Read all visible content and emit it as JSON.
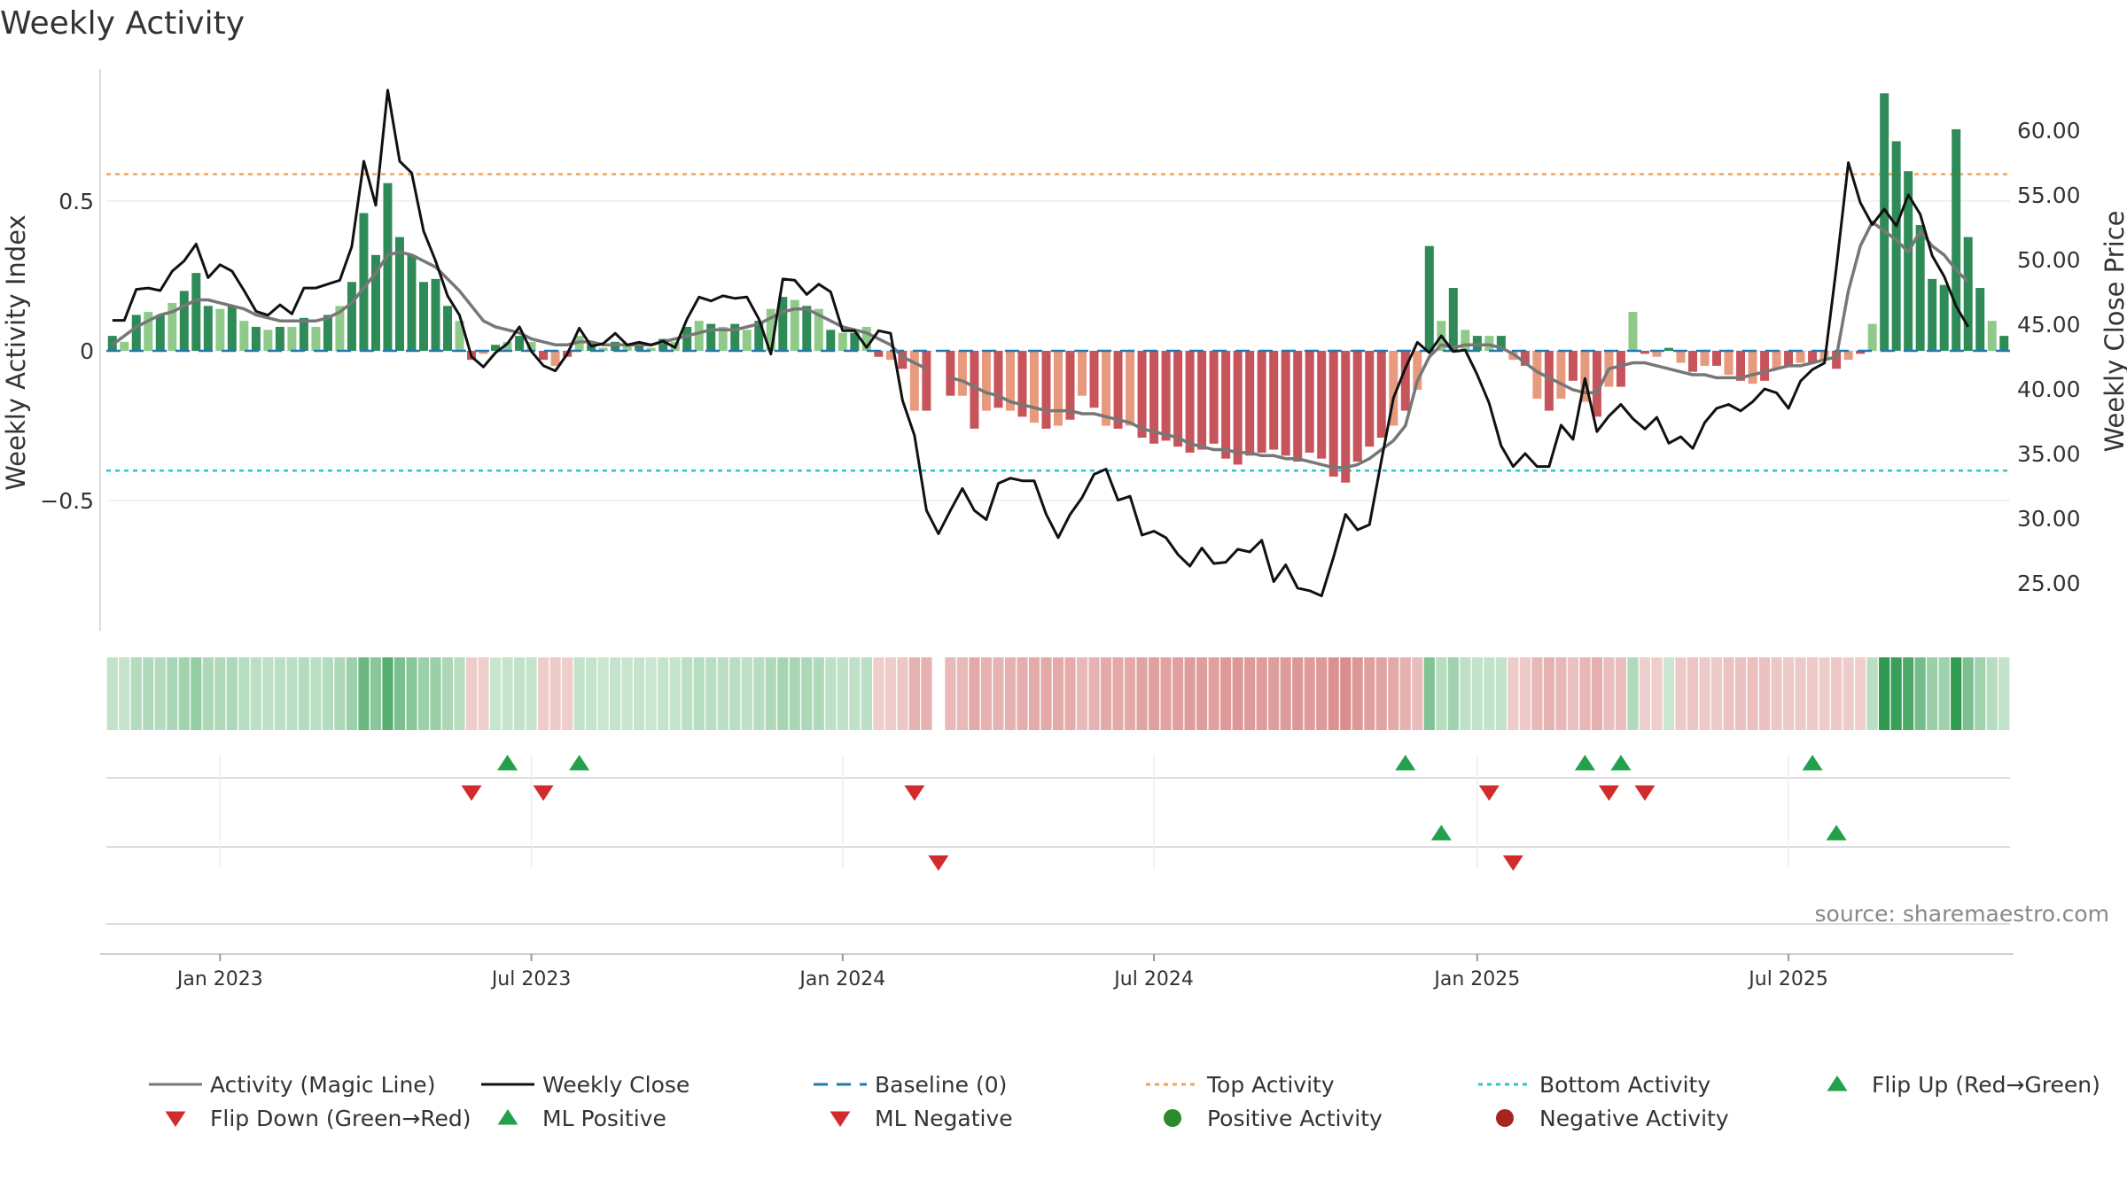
{
  "title": "Weekly Activity",
  "source": "source: sharemaestro.com",
  "colors": {
    "pos_dark": "#2e8b57",
    "pos_light": "#8fca8a",
    "neg_dark": "#c8545b",
    "neg_light": "#e89a7e",
    "magic": "#777777",
    "close": "#111111",
    "baseline": "#1f77b4",
    "top": "#f0a35e",
    "bottom": "#2ec5c5",
    "up": "#22a04b",
    "down": "#d22b2b"
  },
  "chart_data": {
    "type": "bar",
    "title": "Weekly Activity",
    "ylabel": "Weekly Activity Index",
    "y2label": "Weekly Close Price",
    "ylim": [
      -0.93,
      0.95
    ],
    "y2lim": [
      20.3,
      63.1
    ],
    "yticks": [
      {
        "v": 0.5,
        "label": "0.5"
      },
      {
        "v": 0,
        "label": "0"
      },
      {
        "v": -0.5,
        "label": "−0.5"
      }
    ],
    "y2ticks": [
      "60.00",
      "55.00",
      "50.00",
      "45.00",
      "40.00",
      "35.00",
      "30.00",
      "25.00"
    ],
    "top_activity": 0.59,
    "bottom_activity": -0.4,
    "start_week": 0,
    "xticks": [
      {
        "label": "Jan 2023",
        "week": 9
      },
      {
        "label": "Jul 2023",
        "week": 35
      },
      {
        "label": "Jan 2024",
        "week": 61
      },
      {
        "label": "Jul 2024",
        "week": 87
      },
      {
        "label": "Jan 2025",
        "week": 114
      },
      {
        "label": "Jul 2025",
        "week": 140
      }
    ],
    "activity": [
      0.05,
      0.03,
      0.12,
      0.13,
      0.12,
      0.16,
      0.2,
      0.26,
      0.15,
      0.14,
      0.15,
      0.1,
      0.08,
      0.07,
      0.08,
      0.08,
      0.11,
      0.08,
      0.12,
      0.15,
      0.23,
      0.46,
      0.32,
      0.56,
      0.38,
      0.32,
      0.23,
      0.24,
      0.15,
      0.1,
      -0.03,
      -0.01,
      0.02,
      0.03,
      0.05,
      0.03,
      -0.03,
      -0.05,
      -0.02,
      0.05,
      0.03,
      0.01,
      0.03,
      0.02,
      0.03,
      0.01,
      0.04,
      0.03,
      0.08,
      0.1,
      0.09,
      0.08,
      0.09,
      0.07,
      0.1,
      0.14,
      0.18,
      0.17,
      0.15,
      0.14,
      0.07,
      0.06,
      0.06,
      0.08,
      -0.02,
      -0.03,
      -0.06,
      -0.2,
      -0.2,
      null,
      -0.15,
      -0.15,
      -0.26,
      -0.2,
      -0.19,
      -0.2,
      -0.22,
      -0.24,
      -0.26,
      -0.25,
      -0.23,
      -0.15,
      -0.19,
      -0.25,
      -0.26,
      -0.25,
      -0.29,
      -0.31,
      -0.3,
      -0.32,
      -0.34,
      -0.33,
      -0.31,
      -0.36,
      -0.38,
      -0.35,
      -0.34,
      -0.33,
      -0.35,
      -0.37,
      -0.34,
      -0.36,
      -0.42,
      -0.44,
      -0.37,
      -0.32,
      -0.29,
      -0.25,
      -0.2,
      -0.13,
      0.35,
      0.1,
      0.21,
      0.07,
      0.05,
      0.05,
      0.05,
      -0.03,
      -0.05,
      -0.16,
      -0.2,
      -0.16,
      -0.1,
      -0.17,
      -0.22,
      -0.12,
      -0.12,
      0.13,
      -0.01,
      -0.02,
      0.01,
      -0.04,
      -0.07,
      -0.05,
      -0.05,
      -0.08,
      -0.1,
      -0.11,
      -0.1,
      -0.06,
      -0.05,
      -0.04,
      -0.04,
      -0.03,
      -0.06,
      -0.03,
      -0.01,
      0.09,
      0.86,
      0.7,
      0.6,
      0.42,
      0.24,
      0.22,
      0.74,
      0.38,
      0.21,
      0.1,
      0.05
    ],
    "magic_line": [
      0.02,
      0.05,
      0.08,
      0.1,
      0.12,
      0.13,
      0.15,
      0.17,
      0.17,
      0.16,
      0.15,
      0.14,
      0.12,
      0.11,
      0.1,
      0.1,
      0.1,
      0.1,
      0.11,
      0.13,
      0.16,
      0.21,
      0.26,
      0.32,
      0.33,
      0.32,
      0.3,
      0.28,
      0.24,
      0.2,
      0.15,
      0.1,
      0.08,
      0.07,
      0.06,
      0.04,
      0.03,
      0.02,
      0.02,
      0.03,
      0.03,
      0.02,
      0.02,
      0.02,
      0.02,
      0.02,
      0.03,
      0.04,
      0.05,
      0.06,
      0.07,
      0.07,
      0.07,
      0.08,
      0.09,
      0.11,
      0.13,
      0.14,
      0.14,
      0.12,
      0.1,
      0.08,
      0.07,
      0.06,
      0.04,
      0.02,
      -0.02,
      -0.04,
      -0.06,
      null,
      -0.09,
      -0.1,
      -0.12,
      -0.14,
      -0.15,
      -0.17,
      -0.18,
      -0.19,
      -0.2,
      -0.2,
      -0.2,
      -0.21,
      -0.21,
      -0.22,
      -0.23,
      -0.24,
      -0.26,
      -0.27,
      -0.28,
      -0.29,
      -0.31,
      -0.32,
      -0.33,
      -0.33,
      -0.34,
      -0.34,
      -0.35,
      -0.35,
      -0.36,
      -0.36,
      -0.37,
      -0.38,
      -0.39,
      -0.39,
      -0.38,
      -0.36,
      -0.33,
      -0.3,
      -0.25,
      -0.1,
      -0.02,
      0.02,
      0.01,
      0.02,
      0.02,
      0.02,
      0.01,
      -0.01,
      -0.04,
      -0.07,
      -0.09,
      -0.11,
      -0.13,
      -0.14,
      -0.14,
      -0.06,
      -0.05,
      -0.04,
      -0.04,
      -0.05,
      -0.06,
      -0.07,
      -0.08,
      -0.08,
      -0.09,
      -0.09,
      -0.09,
      -0.08,
      -0.07,
      -0.06,
      -0.05,
      -0.05,
      -0.04,
      -0.03,
      -0.02,
      0.2,
      0.35,
      0.43,
      0.4,
      0.37,
      0.33,
      0.4,
      0.35,
      0.32,
      0.27,
      0.23
    ],
    "weekly_close": [
      45.3,
      45.3,
      47.7,
      47.8,
      47.6,
      49.1,
      49.9,
      51.2,
      48.6,
      49.6,
      49.1,
      47.6,
      46.0,
      45.7,
      46.5,
      45.8,
      47.8,
      47.8,
      48.1,
      48.4,
      51.0,
      57.6,
      54.2,
      63.1,
      57.6,
      56.7,
      52.2,
      49.9,
      47.2,
      45.7,
      42.5,
      41.7,
      42.8,
      43.5,
      44.8,
      42.9,
      41.8,
      41.4,
      42.7,
      44.7,
      43.3,
      43.5,
      44.3,
      43.4,
      43.6,
      43.4,
      43.7,
      43.2,
      45.4,
      47.1,
      46.8,
      47.2,
      47.0,
      47.1,
      45.4,
      42.7,
      48.5,
      48.4,
      47.3,
      48.1,
      47.5,
      44.5,
      44.5,
      43.2,
      44.5,
      44.3,
      39.1,
      36.4,
      30.6,
      28.8,
      30.6,
      32.3,
      30.6,
      29.9,
      32.7,
      33.1,
      32.9,
      32.9,
      30.3,
      28.5,
      30.3,
      31.6,
      33.4,
      33.8,
      31.4,
      31.7,
      28.7,
      29.0,
      28.5,
      27.2,
      26.3,
      27.7,
      26.5,
      26.6,
      27.6,
      27.4,
      28.3,
      25.1,
      26.4,
      24.6,
      24.4,
      24.0,
      27.0,
      30.3,
      29.1,
      29.5,
      34.5,
      39.3,
      41.6,
      43.6,
      42.8,
      44.1,
      42.9,
      43.0,
      41.1,
      38.9,
      35.6,
      34.0,
      35.0,
      34.0,
      34.0,
      37.2,
      36.1,
      40.8,
      36.7,
      37.9,
      38.8,
      37.7,
      36.9,
      37.8,
      35.8,
      36.3,
      35.4,
      37.4,
      38.5,
      38.8,
      38.3,
      39.0,
      40.0,
      39.7,
      38.5,
      40.6,
      41.5,
      42.0,
      49.4,
      57.5,
      54.4,
      52.7,
      53.9,
      52.6,
      55.0,
      53.5,
      50.3,
      48.7,
      46.4,
      44.8
    ],
    "flip_up_weeks": [
      33,
      39,
      108,
      123,
      126,
      142
    ],
    "flip_down_weeks": [
      30,
      36,
      67,
      115,
      125,
      128
    ],
    "ml_positive_weeks": [
      111,
      144
    ],
    "ml_negative_weeks": [
      69,
      117
    ],
    "legend": [
      {
        "label": "Activity (Magic Line)",
        "kind": "line-magic"
      },
      {
        "label": "Weekly Close",
        "kind": "line-close"
      },
      {
        "label": "Baseline (0)",
        "kind": "line-baseline"
      },
      {
        "label": "Top Activity",
        "kind": "line-top"
      },
      {
        "label": "Bottom Activity",
        "kind": "line-bottom"
      },
      {
        "label": "Flip Up (Red→Green)",
        "kind": "tri-up"
      },
      {
        "label": "Flip Down (Green→Red)",
        "kind": "tri-down"
      },
      {
        "label": "ML Positive",
        "kind": "tri-up"
      },
      {
        "label": "ML Negative",
        "kind": "tri-down"
      },
      {
        "label": "Positive Activity",
        "kind": "dot-pos"
      },
      {
        "label": "Negative Activity",
        "kind": "dot-neg"
      }
    ]
  }
}
